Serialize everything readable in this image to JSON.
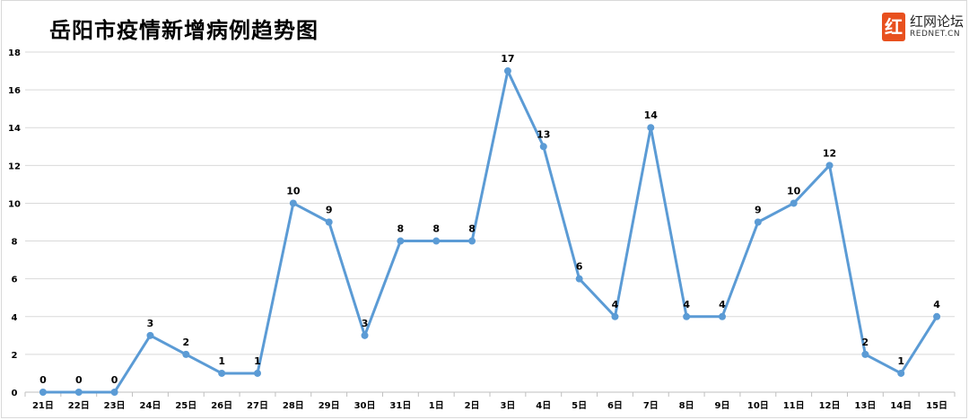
{
  "chart_data": {
    "type": "line",
    "title": "岳阳市疫情新增病例趋势图",
    "xlabel": "",
    "ylabel": "",
    "categories": [
      "21日",
      "22日",
      "23日",
      "24日",
      "25日",
      "26日",
      "27日",
      "28日",
      "29日",
      "30日",
      "31日",
      "1日",
      "2日",
      "3日",
      "4日",
      "5日",
      "6日",
      "7日",
      "8日",
      "9日",
      "10日",
      "11日",
      "12日",
      "13日",
      "14日",
      "15日"
    ],
    "values": [
      0,
      0,
      0,
      3,
      2,
      1,
      1,
      10,
      9,
      3,
      8,
      8,
      8,
      17,
      13,
      6,
      4,
      14,
      4,
      4,
      9,
      10,
      12,
      2,
      1,
      4
    ],
    "ylim": [
      0,
      18
    ],
    "yticks": [
      0,
      2,
      4,
      6,
      8,
      10,
      12,
      14,
      16,
      18
    ],
    "grid": true,
    "legend": "none",
    "data_labels": true,
    "line_color": "#5b9bd5"
  },
  "watermark": {
    "logo": "红",
    "cn": "红网论坛",
    "en": "REDNET.CN",
    "color": "#e8501e"
  }
}
